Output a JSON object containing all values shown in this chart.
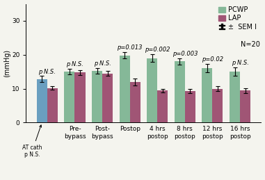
{
  "groups": [
    {
      "label": "AT cath",
      "pcwp": 12.8,
      "lap": 10.2,
      "pcwp_sem": 0.9,
      "lap_sem": 0.6,
      "is_at_cath": true,
      "pval": "p N.S."
    },
    {
      "label": "Pre-\nbypass",
      "pcwp": 15.0,
      "lap": 14.8,
      "pcwp_sem": 0.8,
      "lap_sem": 0.7,
      "is_at_cath": false,
      "pval": "p N.S."
    },
    {
      "label": "Post-\nbypass",
      "pcwp": 15.2,
      "lap": 14.5,
      "pcwp_sem": 0.8,
      "lap_sem": 0.7,
      "is_at_cath": false,
      "pval": "p N.S."
    },
    {
      "label": "Postop",
      "pcwp": 19.8,
      "lap": 12.0,
      "pcwp_sem": 0.9,
      "lap_sem": 1.0,
      "is_at_cath": false,
      "pval": "p=0.013"
    },
    {
      "label": "4 hrs\npostop",
      "pcwp": 19.0,
      "lap": 9.4,
      "pcwp_sem": 1.2,
      "lap_sem": 0.6,
      "is_at_cath": false,
      "pval": "p=0.002"
    },
    {
      "label": "8 hrs\npostop",
      "pcwp": 18.0,
      "lap": 9.3,
      "pcwp_sem": 1.0,
      "lap_sem": 0.7,
      "is_at_cath": false,
      "pval": "p=0.003"
    },
    {
      "label": "12 hrs\npostop",
      "pcwp": 16.0,
      "lap": 10.0,
      "pcwp_sem": 1.2,
      "lap_sem": 0.8,
      "is_at_cath": false,
      "pval": "p=0.02"
    },
    {
      "label": "16 hrs\npostop",
      "pcwp": 15.0,
      "lap": 9.4,
      "pcwp_sem": 1.3,
      "lap_sem": 0.7,
      "is_at_cath": false,
      "pval": "p N.S."
    }
  ],
  "pcwp_color": "#85b898",
  "lap_color": "#a05575",
  "at_cath_pcwp_color": "#6a9fc0",
  "ylim": [
    0,
    35
  ],
  "yticks": [
    0,
    10,
    20,
    30
  ],
  "ylabel": "(mmHg)",
  "legend_pcwp": "PCWP",
  "legend_lap": "LAP",
  "legend_sem": "±  SEM I",
  "legend_n": "N=20",
  "background_color": "#f4f4ee",
  "bar_width": 0.38,
  "fontsize_ticks": 6.5,
  "fontsize_labels": 7,
  "fontsize_pval": 6,
  "fontsize_legend": 7
}
